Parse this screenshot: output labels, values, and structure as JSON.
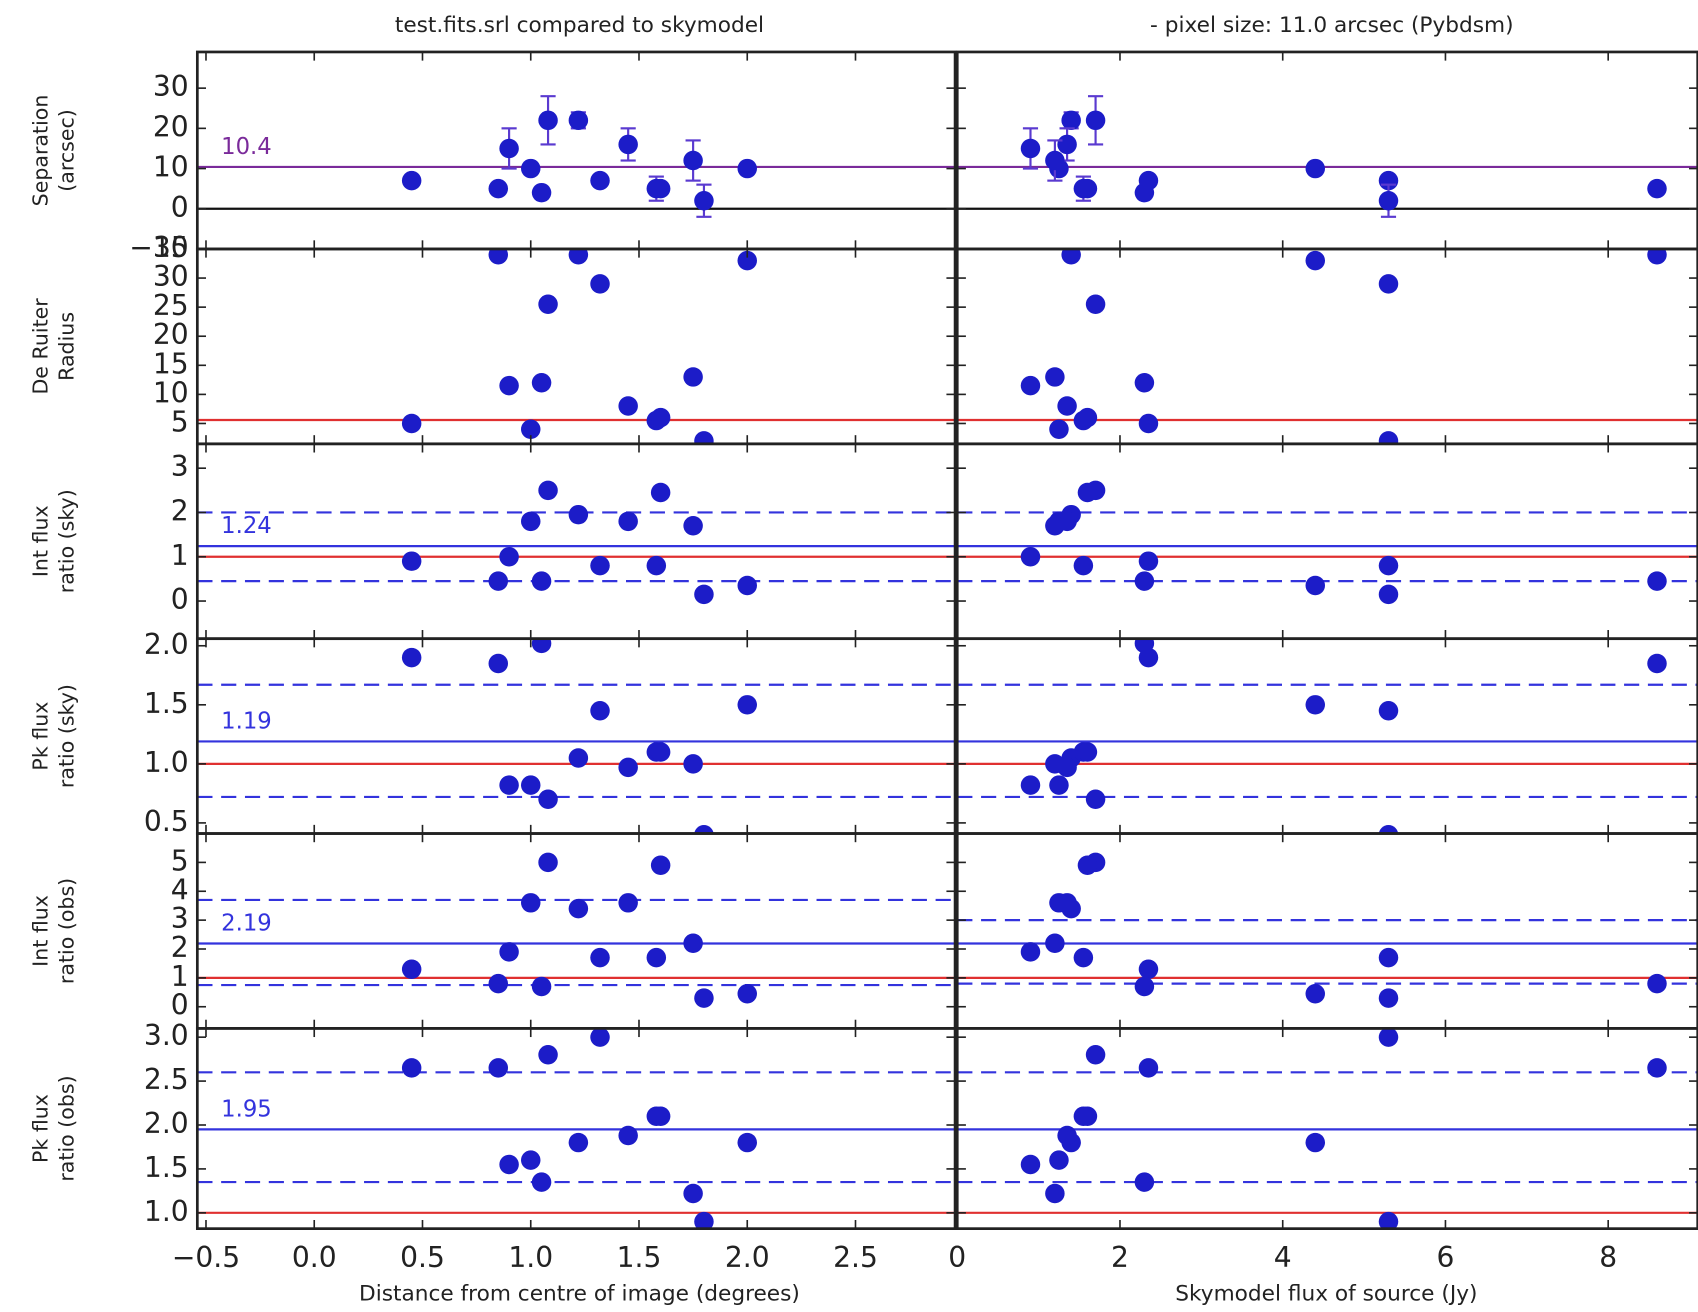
{
  "chart_data": {
    "type": "scatter",
    "titles": [
      "test.fits.srl compared to skymodel",
      "- pixel size: 11.0 arcsec (Pybdsm)"
    ],
    "xlabels": [
      "Distance from centre of image (degrees)",
      "Skymodel flux of source (Jy)"
    ],
    "distance": [
      0.45,
      0.85,
      0.9,
      1.0,
      1.05,
      1.08,
      1.22,
      1.32,
      1.45,
      1.58,
      1.6,
      1.75,
      1.8,
      2.0
    ],
    "flux": [
      2.35,
      8.6,
      0.9,
      1.25,
      2.3,
      1.7,
      1.4,
      5.3,
      1.35,
      1.55,
      1.6,
      1.2,
      5.3,
      4.4
    ],
    "xlim_left": [
      -0.54,
      2.96
    ],
    "xticks_left": [
      {
        "value": -0.5,
        "label": "−0.5"
      },
      {
        "value": 0,
        "label": "0.0"
      },
      {
        "value": 0.5,
        "label": "0.5"
      },
      {
        "value": 1,
        "label": "1.0"
      },
      {
        "value": 1.5,
        "label": "1.5"
      },
      {
        "value": 2,
        "label": "2.0"
      },
      {
        "value": 2.5,
        "label": "2.5"
      }
    ],
    "xlim_right": [
      0,
      9.1
    ],
    "xticks_right": [
      0,
      2,
      4,
      6,
      8
    ],
    "point_color": "#1c1cc8",
    "rows": [
      {
        "ylabel": [
          "Separation",
          "(arcsec)"
        ],
        "ylim": [
          -10,
          39
        ],
        "yticks": [
          {
            "value": -10,
            "label": "−10"
          },
          0,
          10,
          20,
          30
        ],
        "values": [
          7,
          5,
          15,
          10,
          4,
          22,
          22,
          7,
          16,
          5,
          5,
          12,
          2,
          10
        ],
        "errors": [
          null,
          null,
          5,
          null,
          null,
          6,
          2,
          null,
          4,
          3,
          null,
          5,
          4,
          null
        ],
        "lines": [
          {
            "value": 0,
            "color": "#111111",
            "dashed": false
          },
          {
            "value": 10.4,
            "color": "#7a2a9a",
            "dashed": false,
            "labeled": true
          }
        ]
      },
      {
        "ylabel": [
          "De Ruiter",
          "Radius"
        ],
        "ylim": [
          1.5,
          35
        ],
        "yticks": [
          5,
          10,
          15,
          20,
          25,
          30,
          35
        ],
        "values": [
          5,
          34,
          11.5,
          4,
          12,
          25.5,
          34,
          29,
          8,
          5.5,
          6,
          13,
          2,
          33
        ],
        "lines": [
          {
            "value": 5.6,
            "color": "#e03030",
            "dashed": false
          }
        ]
      },
      {
        "ylabel": [
          "Int flux",
          "ratio (sky)"
        ],
        "ylim": [
          -0.85,
          3.55
        ],
        "yticks": [
          0,
          1,
          2,
          3
        ],
        "values": [
          0.9,
          0.45,
          1.0,
          1.8,
          0.45,
          2.5,
          1.95,
          0.8,
          1.8,
          0.8,
          2.45,
          1.7,
          0.15,
          0.35
        ],
        "lines": [
          {
            "value": 1,
            "color": "#e03030",
            "dashed": false
          },
          {
            "value": 1.24,
            "color": "#3333dd",
            "dashed": false,
            "labeled": true
          },
          {
            "value": 2.0,
            "color": "#3333dd",
            "dashed": true
          },
          {
            "value": 0.45,
            "color": "#3333dd",
            "dashed": true
          }
        ]
      },
      {
        "ylabel": [
          "Pk flux",
          "ratio (sky)"
        ],
        "ylim": [
          0.41,
          2.06
        ],
        "yticks": [
          {
            "value": 0.5,
            "label": "0.5"
          },
          {
            "value": 1,
            "label": "1.0"
          },
          {
            "value": 1.5,
            "label": "1.5"
          },
          {
            "value": 2,
            "label": "2.0"
          }
        ],
        "values": [
          1.9,
          1.85,
          0.82,
          0.82,
          2.02,
          0.7,
          1.05,
          1.45,
          0.97,
          1.1,
          1.1,
          1.0,
          0.4,
          1.5
        ],
        "lines": [
          {
            "value": 1,
            "color": "#e03030",
            "dashed": false
          },
          {
            "value": 1.19,
            "color": "#3333dd",
            "dashed": false,
            "labeled": true
          },
          {
            "value": 1.67,
            "color": "#3333dd",
            "dashed": true
          },
          {
            "value": 0.72,
            "color": "#3333dd",
            "dashed": true
          }
        ]
      },
      {
        "ylabel": [
          "Int flux",
          "ratio (obs)"
        ],
        "ylim": [
          -0.75,
          6.0
        ],
        "yticks": [
          0,
          1,
          2,
          3,
          4,
          5
        ],
        "values": [
          1.3,
          0.8,
          1.9,
          3.6,
          0.7,
          5.0,
          3.4,
          1.7,
          3.6,
          1.7,
          4.9,
          2.2,
          0.3,
          0.45
        ],
        "lines": [
          {
            "value": 1,
            "color": "#e03030",
            "dashed": false
          },
          {
            "value": 2.19,
            "color": "#3333dd",
            "dashed": false,
            "labeled": true
          },
          {
            "value": 3.7,
            "color": "#3333dd",
            "dashed": true,
            "side": "left"
          },
          {
            "value": 0.75,
            "color": "#3333dd",
            "dashed": true,
            "side": "left"
          },
          {
            "value": 3.0,
            "color": "#3333dd",
            "dashed": true,
            "side": "right"
          },
          {
            "value": 0.8,
            "color": "#3333dd",
            "dashed": true,
            "side": "right"
          }
        ]
      },
      {
        "ylabel": [
          "Pk flux",
          "ratio (obs)"
        ],
        "ylim": [
          0.82,
          3.1
        ],
        "yticks": [
          {
            "value": 1,
            "label": "1.0"
          },
          {
            "value": 1.5,
            "label": "1.5"
          },
          {
            "value": 2,
            "label": "2.0"
          },
          {
            "value": 2.5,
            "label": "2.5"
          },
          {
            "value": 3,
            "label": "3.0"
          }
        ],
        "values": [
          2.65,
          2.65,
          1.55,
          1.6,
          1.35,
          2.8,
          1.8,
          3.0,
          1.88,
          2.1,
          2.1,
          1.22,
          0.9,
          1.8
        ],
        "lines": [
          {
            "value": 1,
            "color": "#e03030",
            "dashed": false
          },
          {
            "value": 1.95,
            "color": "#3333dd",
            "dashed": false,
            "labeled": true
          },
          {
            "value": 2.6,
            "color": "#3333dd",
            "dashed": true
          },
          {
            "value": 1.35,
            "color": "#3333dd",
            "dashed": true
          }
        ]
      }
    ]
  }
}
